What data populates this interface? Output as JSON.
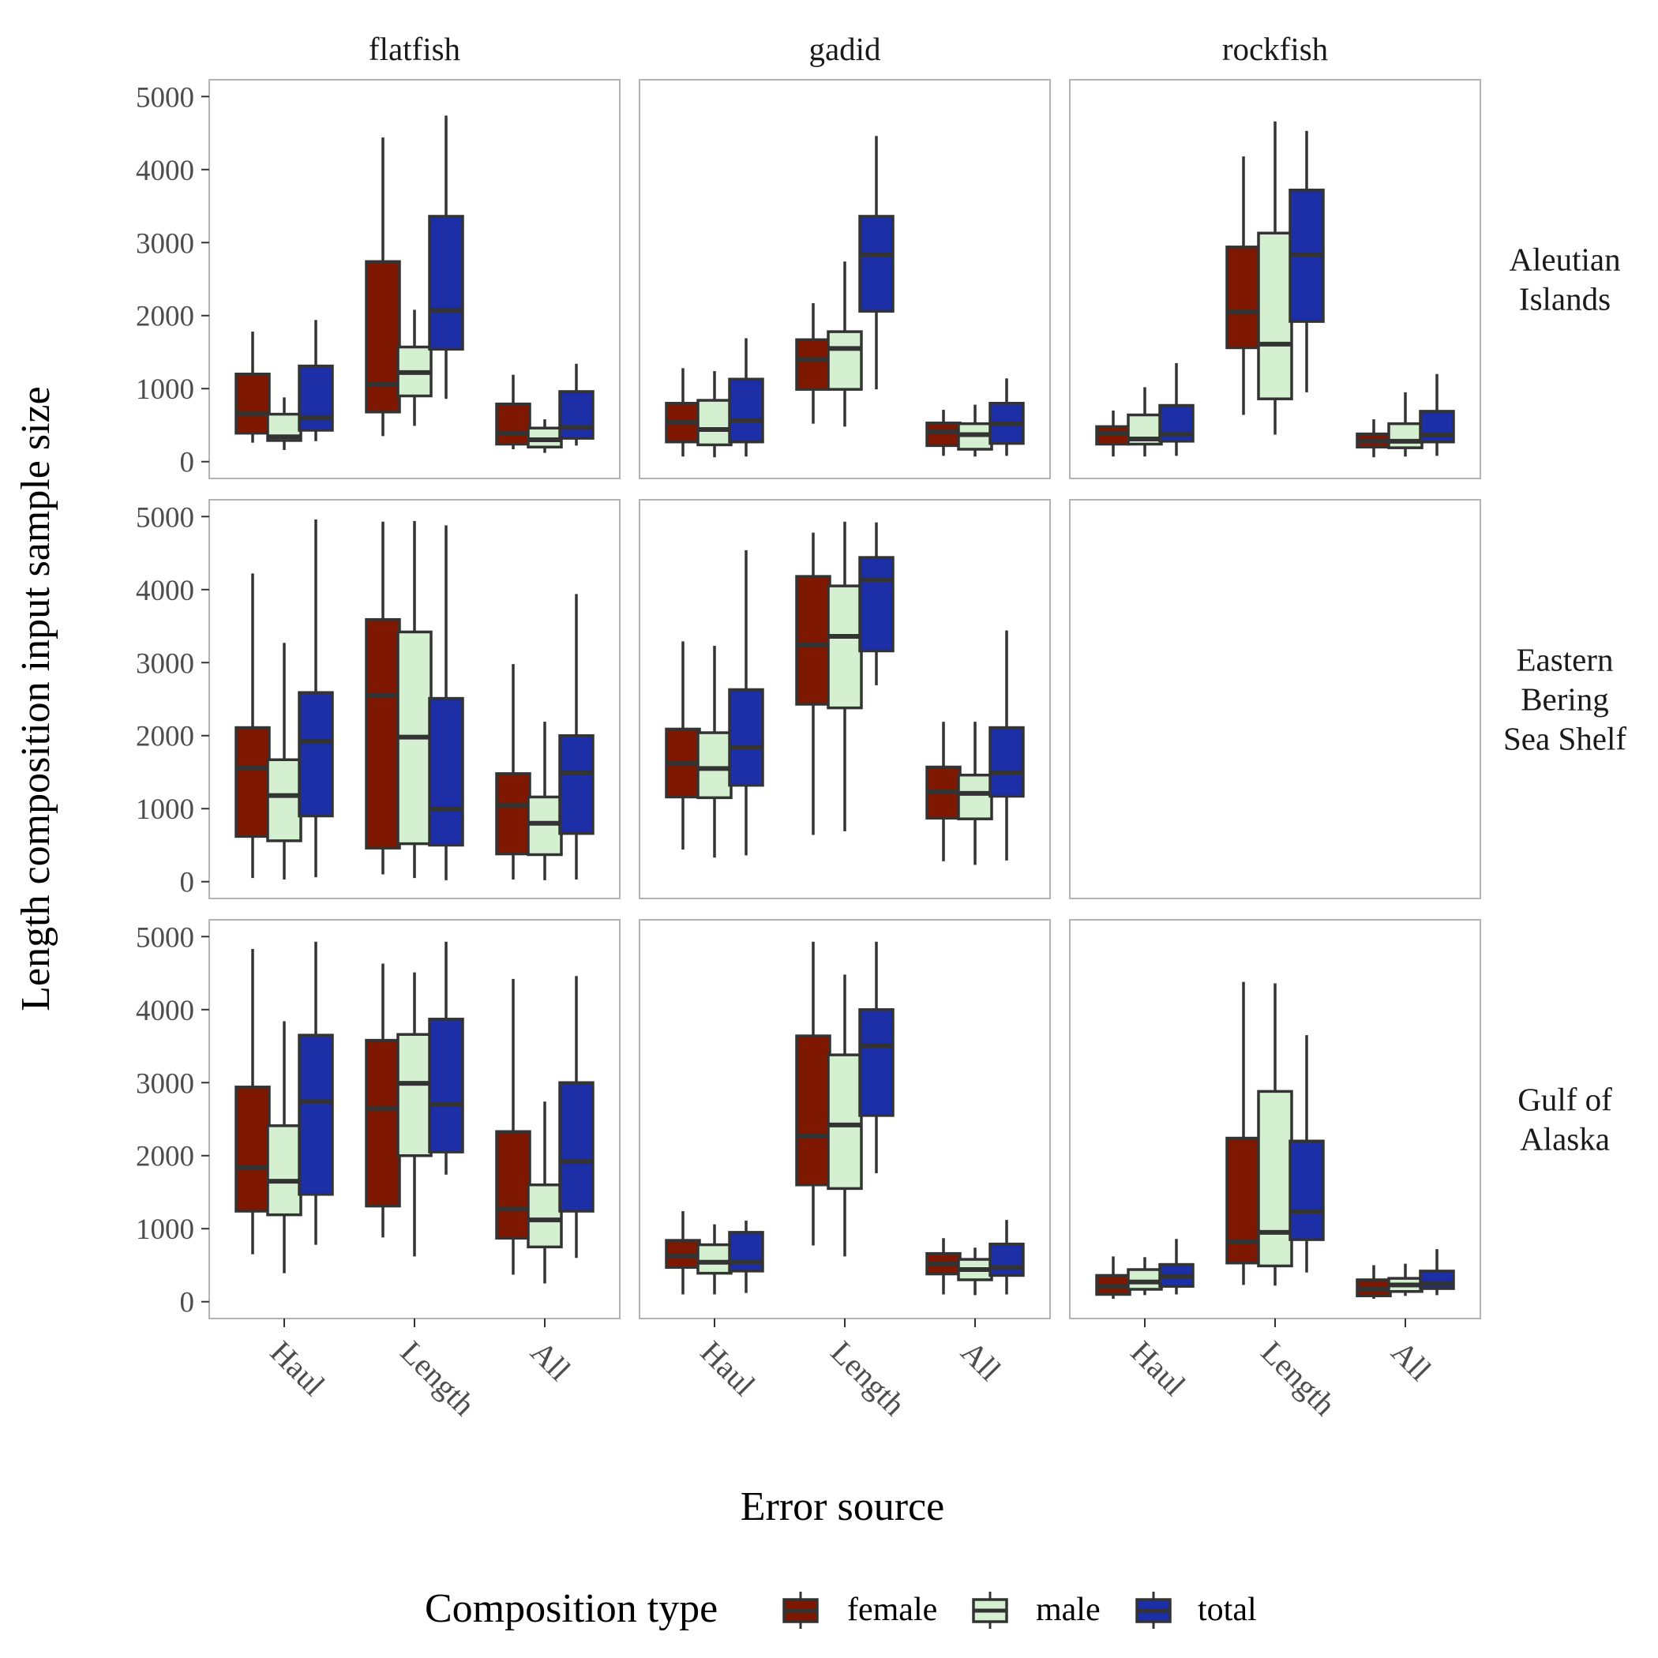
{
  "chart_data": {
    "type": "boxplot",
    "facets": {
      "cols": [
        "flatfish",
        "gadid",
        "rockfish"
      ],
      "rows": [
        "Aleutian Islands",
        "Eastern Bering Sea Shelf",
        "Gulf of Alaska"
      ]
    },
    "row_label_lines": {
      "Aleutian Islands": [
        "Aleutian",
        "Islands"
      ],
      "Eastern Bering Sea Shelf": [
        "Eastern",
        "Bering",
        "Sea Shelf"
      ],
      "Gulf of Alaska": [
        "Gulf of",
        "Alaska"
      ]
    },
    "categories": [
      "Haul",
      "Length",
      "All"
    ],
    "xlabel": "Error source",
    "ylabel": "Length composition input sample size",
    "ylim": [
      -230,
      5230
    ],
    "yticks": [
      0,
      1000,
      2000,
      3000,
      4000,
      5000
    ],
    "legend": {
      "title": "Composition type",
      "position": "bottom",
      "entries": [
        {
          "name": "female",
          "color": "#7f1800"
        },
        {
          "name": "male",
          "color": "#d4f0d0"
        },
        {
          "name": "total",
          "color": "#1c2fa6"
        }
      ]
    },
    "panels": [
      {
        "region": "Aleutian Islands",
        "species": "flatfish",
        "boxes": {
          "Haul": {
            "female": [
              260,
              390,
              660,
              1200,
              1780
            ],
            "male": [
              160,
              290,
              340,
              650,
              880
            ],
            "total": [
              280,
              430,
              600,
              1310,
              1940
            ]
          },
          "Length": {
            "female": [
              350,
              680,
              1060,
              2740,
              4440
            ],
            "male": [
              490,
              900,
              1220,
              1570,
              2080
            ],
            "total": [
              860,
              1540,
              2070,
              3360,
              4740
            ]
          },
          "All": {
            "female": [
              170,
              240,
              390,
              790,
              1190
            ],
            "male": [
              120,
              200,
              300,
              460,
              580
            ],
            "total": [
              220,
              320,
              470,
              960,
              1340
            ]
          }
        }
      },
      {
        "region": "Aleutian Islands",
        "species": "gadid",
        "boxes": {
          "Haul": {
            "female": [
              70,
              270,
              540,
              800,
              1280
            ],
            "male": [
              60,
              230,
              440,
              840,
              1240
            ],
            "total": [
              70,
              270,
              570,
              1130,
              1690
            ]
          },
          "Length": {
            "female": [
              520,
              990,
              1400,
              1670,
              2170
            ],
            "male": [
              480,
              990,
              1550,
              1780,
              2740
            ],
            "total": [
              990,
              2060,
              2840,
              3360,
              4460
            ]
          },
          "All": {
            "female": [
              80,
              220,
              410,
              530,
              710
            ],
            "male": [
              70,
              170,
              370,
              520,
              780
            ],
            "total": [
              80,
              250,
              520,
              800,
              1140
            ]
          }
        }
      },
      {
        "region": "Aleutian Islands",
        "species": "rockfish",
        "boxes": {
          "Haul": {
            "female": [
              70,
              240,
              390,
              480,
              700
            ],
            "male": [
              70,
              240,
              310,
              640,
              1020
            ],
            "total": [
              80,
              280,
              380,
              770,
              1350
            ]
          },
          "Length": {
            "female": [
              640,
              1560,
              2050,
              2940,
              4180
            ],
            "male": [
              370,
              860,
              1610,
              3130,
              4660
            ],
            "total": [
              950,
              1920,
              2840,
              3720,
              4530
            ]
          },
          "All": {
            "female": [
              60,
              200,
              290,
              380,
              580
            ],
            "male": [
              70,
              190,
              280,
              520,
              950
            ],
            "total": [
              80,
              270,
              370,
              690,
              1200
            ]
          }
        }
      },
      {
        "region": "Eastern Bering Sea Shelf",
        "species": "flatfish",
        "boxes": {
          "Haul": {
            "female": [
              50,
              620,
              1560,
              2110,
              4220
            ],
            "male": [
              30,
              560,
              1180,
              1670,
              3270
            ],
            "total": [
              60,
              900,
              1920,
              2590,
              4960
            ]
          },
          "Length": {
            "female": [
              100,
              460,
              2560,
              3590,
              4930
            ],
            "male": [
              50,
              520,
              1980,
              3420,
              4940
            ],
            "total": [
              20,
              500,
              1000,
              2510,
              4880
            ]
          },
          "All": {
            "female": [
              30,
              380,
              1050,
              1480,
              2980
            ],
            "male": [
              20,
              370,
              800,
              1160,
              2190
            ],
            "total": [
              30,
              660,
              1490,
              2000,
              3940
            ]
          }
        }
      },
      {
        "region": "Eastern Bering Sea Shelf",
        "species": "gadid",
        "boxes": {
          "Haul": {
            "female": [
              440,
              1160,
              1620,
              2090,
              3290
            ],
            "male": [
              330,
              1150,
              1550,
              2040,
              3230
            ],
            "total": [
              360,
              1320,
              1840,
              2630,
              4540
            ]
          },
          "Length": {
            "female": [
              640,
              2430,
              3240,
              4180,
              4780
            ],
            "male": [
              690,
              2380,
              3360,
              4050,
              4930
            ],
            "total": [
              2690,
              3160,
              4140,
              4440,
              4920
            ]
          },
          "All": {
            "female": [
              280,
              870,
              1230,
              1570,
              2190
            ],
            "male": [
              230,
              860,
              1210,
              1460,
              2190
            ],
            "total": [
              290,
              1170,
              1500,
              2110,
              3440
            ]
          }
        }
      },
      {
        "region": "Gulf of Alaska",
        "species": "flatfish",
        "boxes": {
          "Haul": {
            "female": [
              650,
              1240,
              1840,
              2940,
              4830
            ],
            "male": [
              390,
              1190,
              1650,
              2410,
              3840
            ],
            "total": [
              780,
              1470,
              2740,
              3650,
              4930
            ]
          },
          "Length": {
            "female": [
              880,
              1310,
              2650,
              3580,
              4630
            ],
            "male": [
              620,
              2000,
              2990,
              3660,
              4510
            ],
            "total": [
              1740,
              2050,
              2710,
              3870,
              4930
            ]
          },
          "All": {
            "female": [
              370,
              870,
              1270,
              2330,
              4420
            ],
            "male": [
              250,
              750,
              1120,
              1600,
              2740
            ],
            "total": [
              600,
              1240,
              1920,
              3000,
              4460
            ]
          }
        }
      },
      {
        "region": "Gulf of Alaska",
        "species": "gadid",
        "boxes": {
          "Haul": {
            "female": [
              100,
              470,
              630,
              840,
              1240
            ],
            "male": [
              100,
              390,
              540,
              780,
              1060
            ],
            "total": [
              120,
              420,
              550,
              950,
              1110
            ]
          },
          "Length": {
            "female": [
              770,
              1600,
              2270,
              3640,
              4930
            ],
            "male": [
              620,
              1550,
              2420,
              3380,
              4480
            ],
            "total": [
              1760,
              2550,
              3510,
              4000,
              4930
            ]
          },
          "All": {
            "female": [
              100,
              380,
              520,
              660,
              870
            ],
            "male": [
              90,
              300,
              440,
              580,
              740
            ],
            "total": [
              100,
              360,
              470,
              790,
              1120
            ]
          }
        }
      },
      {
        "region": "Gulf of Alaska",
        "species": "rockfish",
        "boxes": {
          "Haul": {
            "female": [
              40,
              100,
              210,
              360,
              620
            ],
            "male": [
              90,
              170,
              270,
              440,
              610
            ],
            "total": [
              100,
              210,
              350,
              510,
              860
            ]
          },
          "Length": {
            "female": [
              230,
              530,
              830,
              2240,
              4380
            ],
            "male": [
              220,
              490,
              950,
              2880,
              4360
            ],
            "total": [
              400,
              850,
              1240,
              2200,
              3650
            ]
          },
          "All": {
            "female": [
              40,
              80,
              170,
              300,
              500
            ],
            "male": [
              80,
              140,
              230,
              320,
              520
            ],
            "total": [
              90,
              180,
              250,
              420,
              720
            ]
          }
        }
      }
    ]
  }
}
